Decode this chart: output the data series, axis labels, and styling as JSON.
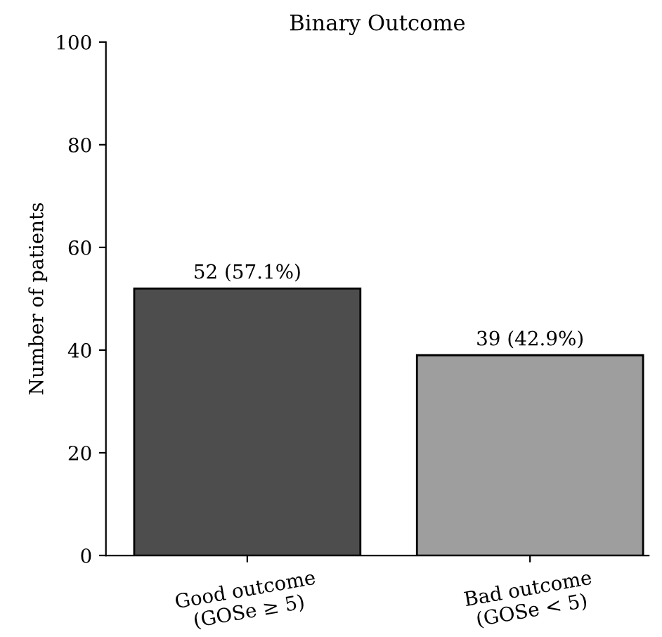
{
  "chart_data": {
    "type": "bar",
    "title": "Binary Outcome",
    "ylabel": "Number of patients",
    "categories": [
      "Good outcome\n(GOSe ≥ 5)",
      "Bad outcome\n(GOSe < 5)"
    ],
    "values": [
      52,
      39
    ],
    "colors": [
      "#4d4d4d",
      "#9e9e9e"
    ],
    "value_labels": [
      "52 (57.1%)",
      "39 (42.9%)"
    ],
    "ylim": [
      0,
      100
    ],
    "yticks": [
      0,
      20,
      40,
      60,
      80,
      100
    ],
    "grid": false
  }
}
